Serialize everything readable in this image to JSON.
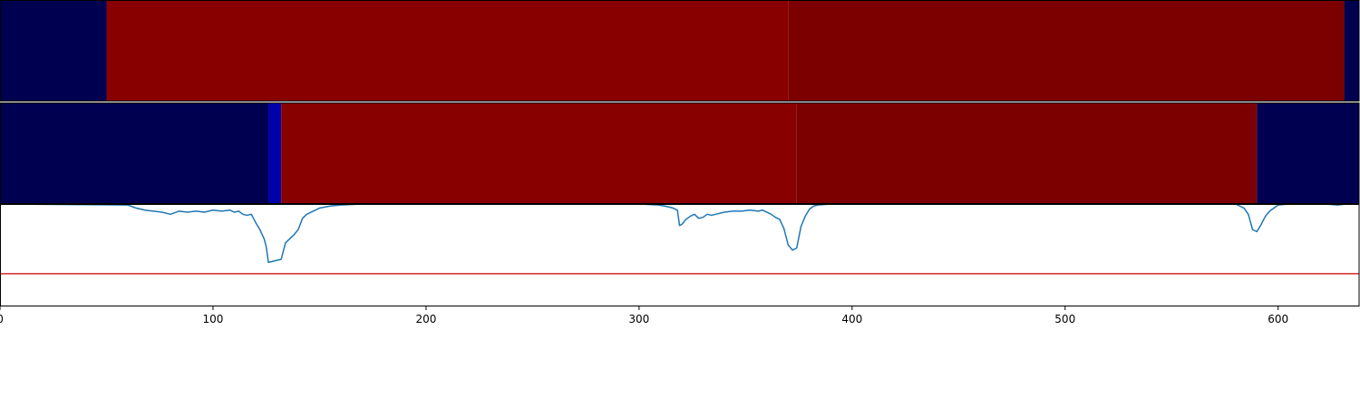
{
  "chart_data": {
    "type": "heatmap",
    "x_range": [
      0,
      638
    ],
    "x_ticks": [
      0,
      100,
      200,
      300,
      400,
      500,
      600
    ],
    "x_tick_labels": [
      "0",
      "100",
      "200",
      "300",
      "400",
      "500",
      "600"
    ],
    "colors": {
      "low": "#000050",
      "mid_low": "#0000aa",
      "high": "#880000",
      "high_dark": "#7d0000",
      "line": "#1f77b4",
      "threshold": "#d62728",
      "frame": "#000000"
    },
    "heatmap_rows": [
      {
        "segments": [
          {
            "x0": 0,
            "x1": 50,
            "color": "low"
          },
          {
            "x0": 50,
            "x1": 370,
            "color": "high"
          },
          {
            "x0": 370,
            "x1": 631,
            "color": "high_dark"
          },
          {
            "x0": 631,
            "x1": 638,
            "color": "low"
          }
        ]
      },
      {
        "segments": [
          {
            "x0": 0,
            "x1": 126,
            "color": "low"
          },
          {
            "x0": 126,
            "x1": 132,
            "color": "mid_low"
          },
          {
            "x0": 132,
            "x1": 374,
            "color": "high"
          },
          {
            "x0": 374,
            "x1": 590,
            "color": "high_dark"
          },
          {
            "x0": 590,
            "x1": 638,
            "color": "low"
          }
        ]
      }
    ],
    "line_panel": {
      "y_range": [
        0,
        1
      ],
      "threshold_y": 0.32,
      "series": [
        {
          "x": [
            0,
            60,
            64,
            68,
            72,
            76,
            80,
            84,
            88,
            92,
            96,
            100,
            104,
            108,
            110,
            112,
            114,
            116,
            118,
            120,
            122,
            124,
            125,
            126,
            128,
            130,
            132,
            134,
            136,
            138,
            140,
            142,
            144,
            146,
            148,
            150,
            155,
            160,
            170,
            200,
            260,
            300,
            309,
            312,
            314,
            316,
            318,
            319,
            320,
            322,
            324,
            326,
            328,
            330,
            332,
            334,
            336,
            340,
            344,
            348,
            352,
            356,
            358,
            362,
            364,
            366,
            368,
            370,
            372,
            374,
            376,
            378,
            380,
            382,
            384,
            390,
            420,
            500,
            580,
            582,
            584,
            586,
            588,
            590,
            592,
            594,
            596,
            598,
            600,
            605,
            615,
            622,
            628,
            632,
            638
          ],
          "y": [
            1.0,
            0.99,
            0.96,
            0.94,
            0.93,
            0.92,
            0.9,
            0.93,
            0.92,
            0.93,
            0.92,
            0.94,
            0.93,
            0.94,
            0.92,
            0.93,
            0.9,
            0.89,
            0.9,
            0.82,
            0.75,
            0.66,
            0.58,
            0.43,
            0.44,
            0.45,
            0.46,
            0.62,
            0.66,
            0.7,
            0.75,
            0.86,
            0.9,
            0.92,
            0.94,
            0.96,
            0.98,
            0.99,
            1.0,
            1.0,
            1.0,
            1.0,
            0.99,
            0.98,
            0.97,
            0.96,
            0.94,
            0.79,
            0.8,
            0.85,
            0.88,
            0.9,
            0.86,
            0.87,
            0.9,
            0.89,
            0.9,
            0.92,
            0.93,
            0.93,
            0.94,
            0.93,
            0.94,
            0.9,
            0.87,
            0.85,
            0.76,
            0.6,
            0.55,
            0.57,
            0.78,
            0.88,
            0.95,
            0.98,
            0.99,
            1.0,
            1.0,
            1.0,
            1.0,
            0.98,
            0.96,
            0.9,
            0.75,
            0.73,
            0.8,
            0.88,
            0.93,
            0.96,
            0.99,
            1.0,
            1.0,
            1.0,
            0.99,
            1.0,
            1.0
          ]
        }
      ]
    }
  }
}
